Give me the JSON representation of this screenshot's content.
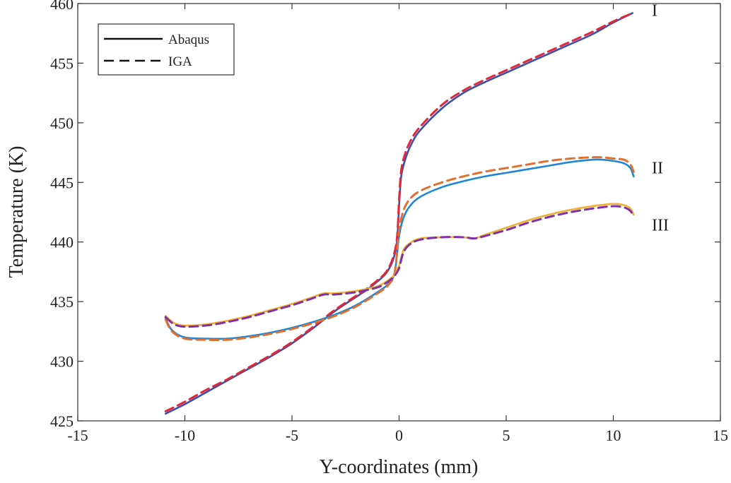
{
  "chart_data": {
    "type": "line",
    "title": "",
    "xlabel": "Y-coordinates (mm)",
    "ylabel": "Temperature (K)",
    "xlim": [
      -15,
      15
    ],
    "ylim": [
      425,
      460
    ],
    "xticks": [
      -15,
      -10,
      -5,
      0,
      5,
      10,
      15
    ],
    "yticks": [
      425,
      430,
      435,
      440,
      445,
      450,
      455,
      460
    ],
    "grid": false,
    "legend": {
      "position": "top-left",
      "entries": [
        {
          "label": "Abaqus",
          "style": "solid"
        },
        {
          "label": "IGA",
          "style": "dashed"
        }
      ]
    },
    "curve_labels": [
      {
        "text": "I",
        "x": 11.8,
        "y": 459.5
      },
      {
        "text": "II",
        "x": 11.8,
        "y": 446.3
      },
      {
        "text": "III",
        "x": 11.8,
        "y": 441.5
      }
    ],
    "series": [
      {
        "name": "I Abaqus",
        "style": "solid",
        "color": "#3a4fb0",
        "x": [
          -10.9,
          -10,
          -9,
          -8,
          -7,
          -6,
          -5,
          -4,
          -3,
          -2,
          -1.5,
          -1,
          -0.6,
          -0.3,
          -0.1,
          0,
          0.1,
          0.3,
          0.6,
          1,
          2,
          3,
          4,
          5,
          6,
          7,
          8,
          9,
          10,
          10.9
        ],
        "y": [
          425.6,
          426.4,
          427.4,
          428.4,
          429.4,
          430.4,
          431.5,
          432.8,
          434.2,
          435.4,
          436.0,
          436.7,
          437.4,
          438.4,
          440.0,
          443.0,
          445.5,
          447.0,
          448.3,
          449.4,
          451.2,
          452.5,
          453.4,
          454.2,
          455.0,
          455.8,
          456.6,
          457.4,
          458.4,
          459.2
        ]
      },
      {
        "name": "I IGA",
        "style": "dashed",
        "color": "#e0283a",
        "x": [
          -10.9,
          -10,
          -9,
          -8,
          -7,
          -6,
          -5,
          -4,
          -3,
          -2,
          -1.5,
          -1,
          -0.6,
          -0.3,
          -0.1,
          0,
          0.1,
          0.3,
          0.6,
          1,
          2,
          3,
          4,
          5,
          6,
          7,
          8,
          9,
          10,
          10.9
        ],
        "y": [
          425.8,
          426.6,
          427.6,
          428.5,
          429.5,
          430.5,
          431.6,
          432.9,
          434.3,
          435.5,
          436.1,
          436.8,
          437.5,
          438.6,
          440.3,
          443.5,
          446.0,
          447.5,
          448.7,
          449.7,
          451.5,
          452.7,
          453.6,
          454.4,
          455.2,
          456.0,
          456.8,
          457.6,
          458.5,
          459.2
        ]
      },
      {
        "name": "II Abaqus",
        "style": "solid",
        "color": "#1f86d4",
        "x": [
          -10.9,
          -10.6,
          -10,
          -9,
          -8,
          -7,
          -6,
          -5,
          -4,
          -3,
          -2,
          -1,
          -0.5,
          -0.2,
          0,
          0.2,
          0.5,
          1,
          2,
          3,
          4,
          5,
          6,
          7,
          8,
          9,
          9.5,
          10,
          10.5,
          10.8,
          10.95
        ],
        "y": [
          433.6,
          432.6,
          432.0,
          431.9,
          431.9,
          432.1,
          432.4,
          432.8,
          433.3,
          433.9,
          434.7,
          435.8,
          436.5,
          437.5,
          440.5,
          442.0,
          443.0,
          443.8,
          444.6,
          445.1,
          445.5,
          445.8,
          446.1,
          446.4,
          446.7,
          446.9,
          446.9,
          446.8,
          446.6,
          446.2,
          445.5
        ]
      },
      {
        "name": "II IGA",
        "style": "dashed",
        "color": "#e07030",
        "x": [
          -10.9,
          -10.6,
          -10,
          -9,
          -8,
          -7,
          -6,
          -5,
          -4,
          -3,
          -2,
          -1,
          -0.5,
          -0.2,
          0,
          0.2,
          0.5,
          1,
          2,
          3,
          4,
          5,
          6,
          7,
          8,
          9,
          9.5,
          10,
          10.5,
          10.8,
          10.95
        ],
        "y": [
          433.5,
          432.5,
          431.9,
          431.8,
          431.8,
          432.0,
          432.3,
          432.7,
          433.2,
          433.8,
          434.6,
          435.7,
          436.4,
          437.5,
          441.0,
          442.6,
          443.6,
          444.3,
          445.0,
          445.5,
          445.9,
          446.2,
          446.5,
          446.8,
          447.0,
          447.1,
          447.1,
          447.0,
          446.9,
          446.5,
          445.9
        ]
      },
      {
        "name": "III Abaqus",
        "style": "solid",
        "color": "#f0b030",
        "x": [
          -10.9,
          -10.5,
          -10,
          -9,
          -8,
          -7,
          -6,
          -5,
          -4,
          -3.5,
          -3,
          -2,
          -1,
          -0.5,
          -0.2,
          0,
          0.2,
          0.5,
          1,
          2,
          3,
          3.5,
          4,
          5,
          6,
          7,
          8,
          9,
          10,
          10.5,
          10.8,
          10.95
        ],
        "y": [
          433.8,
          433.2,
          433.0,
          433.1,
          433.4,
          433.8,
          434.3,
          434.8,
          435.4,
          435.7,
          435.7,
          435.9,
          436.3,
          436.8,
          437.3,
          438.0,
          439.3,
          439.9,
          440.3,
          440.4,
          440.4,
          440.3,
          440.6,
          441.2,
          441.8,
          442.3,
          442.7,
          443.0,
          443.2,
          443.1,
          442.8,
          442.3
        ]
      },
      {
        "name": "III IGA",
        "style": "dashed",
        "color": "#8030a8",
        "x": [
          -10.9,
          -10.5,
          -10,
          -9,
          -8,
          -7,
          -6,
          -5,
          -4,
          -3.5,
          -3,
          -2,
          -1,
          -0.5,
          -0.2,
          0,
          0.2,
          0.5,
          1,
          2,
          3,
          3.5,
          4,
          5,
          6,
          7,
          8,
          9,
          10,
          10.5,
          10.8,
          10.95
        ],
        "y": [
          433.7,
          433.1,
          432.9,
          433.0,
          433.3,
          433.7,
          434.2,
          434.7,
          435.3,
          435.6,
          435.6,
          435.8,
          436.2,
          436.7,
          437.2,
          437.8,
          439.1,
          439.8,
          440.2,
          440.4,
          440.4,
          440.3,
          440.5,
          441.0,
          441.6,
          442.1,
          442.5,
          442.8,
          443.0,
          442.9,
          442.6,
          442.1
        ]
      }
    ]
  }
}
